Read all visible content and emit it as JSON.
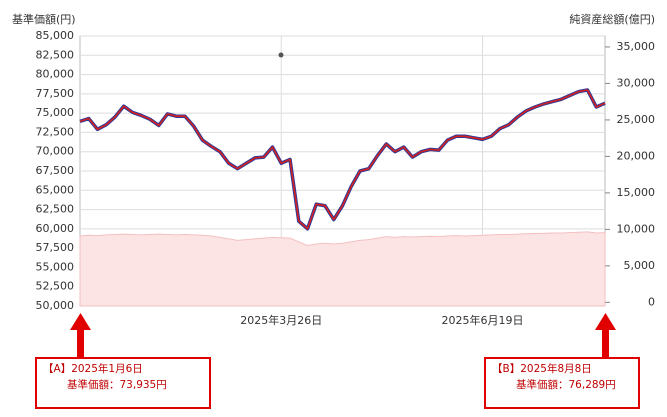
{
  "chart_data": {
    "type": "line",
    "y_label": "基準価額(円)",
    "y2_label": "純資産総額(億円)",
    "categories": [
      null,
      null,
      null,
      null,
      null,
      null,
      null,
      null,
      null,
      null,
      null,
      null,
      null,
      null,
      null,
      null,
      null,
      null,
      null,
      null,
      null,
      null,
      null,
      "2025年3月26日",
      null,
      null,
      null,
      null,
      null,
      null,
      null,
      null,
      null,
      null,
      null,
      null,
      null,
      null,
      null,
      null,
      null,
      null,
      null,
      null,
      null,
      null,
      "2025年6月19日",
      null,
      null,
      null,
      null,
      null,
      null,
      null,
      null,
      null,
      null,
      null,
      null,
      null,
      null
    ],
    "series": [
      {
        "name": "純資産総額",
        "type": "area",
        "axis": "y2",
        "color": "#fde4e4",
        "edge_color": "#f3c0c0",
        "values": [
          9100,
          9200,
          9150,
          9250,
          9300,
          9350,
          9300,
          9250,
          9300,
          9350,
          9300,
          9250,
          9300,
          9250,
          9200,
          9100,
          8900,
          8700,
          8500,
          8600,
          8700,
          8800,
          8900,
          8850,
          8800,
          8300,
          7800,
          8000,
          8100,
          8000,
          8100,
          8300,
          8500,
          8600,
          8800,
          9000,
          8900,
          9000,
          8950,
          9000,
          9050,
          9000,
          9100,
          9150,
          9100,
          9150,
          9200,
          9250,
          9300,
          9300,
          9350,
          9400,
          9450,
          9450,
          9500,
          9500,
          9550,
          9600,
          9650,
          9500,
          9550
        ]
      },
      {
        "name": "基準価額",
        "type": "line",
        "color": "#d42020",
        "outline_color": "#2c3a99",
        "values": [
          73935,
          74300,
          72900,
          73500,
          74500,
          75900,
          75100,
          74700,
          74200,
          73400,
          74900,
          74600,
          74600,
          73300,
          71500,
          70700,
          70000,
          68500,
          67800,
          68500,
          69200,
          69300,
          70600,
          68500,
          69000,
          61000,
          60000,
          63200,
          63000,
          61200,
          63000,
          65500,
          67500,
          67800,
          69500,
          71000,
          70000,
          70600,
          69300,
          70000,
          70300,
          70200,
          71500,
          72000,
          72000,
          71800,
          71600,
          72000,
          73000,
          73500,
          74500,
          75300,
          75800,
          76200,
          76500,
          76800,
          77300,
          77800,
          78000,
          75800,
          76289
        ]
      }
    ],
    "ylim": [
      50000,
      85000
    ],
    "yticks": [
      {
        "value": 50000,
        "label": "50,000"
      },
      {
        "value": 52500,
        "label": "52,500"
      },
      {
        "value": 55000,
        "label": "55,000"
      },
      {
        "value": 57500,
        "label": "57,500"
      },
      {
        "value": 60000,
        "label": "60,000"
      },
      {
        "value": 62500,
        "label": "62,500"
      },
      {
        "value": 65000,
        "label": "65,000"
      },
      {
        "value": 67500,
        "label": "67,500"
      },
      {
        "value": 70000,
        "label": "70,000"
      },
      {
        "value": 72500,
        "label": "72,500"
      },
      {
        "value": 75000,
        "label": "75,000"
      },
      {
        "value": 77500,
        "label": "77,500"
      },
      {
        "value": 80000,
        "label": "80,000"
      },
      {
        "value": 82500,
        "label": "82,500"
      },
      {
        "value": 85000,
        "label": "85,000"
      }
    ],
    "y2lim": [
      -500,
      36500
    ],
    "y2ticks": [
      0,
      {
        "value": 5000,
        "label": "5,000"
      },
      {
        "value": 10000,
        "label": "10,000"
      },
      {
        "value": 15000,
        "label": "15,000"
      },
      {
        "value": 20000,
        "label": "20,000"
      },
      {
        "value": 25000,
        "label": "25,000"
      },
      {
        "value": 30000,
        "label": "30,000"
      },
      {
        "value": 35000,
        "label": "35,000"
      }
    ],
    "grid": true,
    "annotations": [
      {
        "label": "【A】",
        "date": "2025年1月6日",
        "text": "基準価額：73,935円"
      },
      {
        "label": "【B】",
        "date": "2025年8月8日",
        "text": "基準価額：76,289円"
      }
    ]
  }
}
